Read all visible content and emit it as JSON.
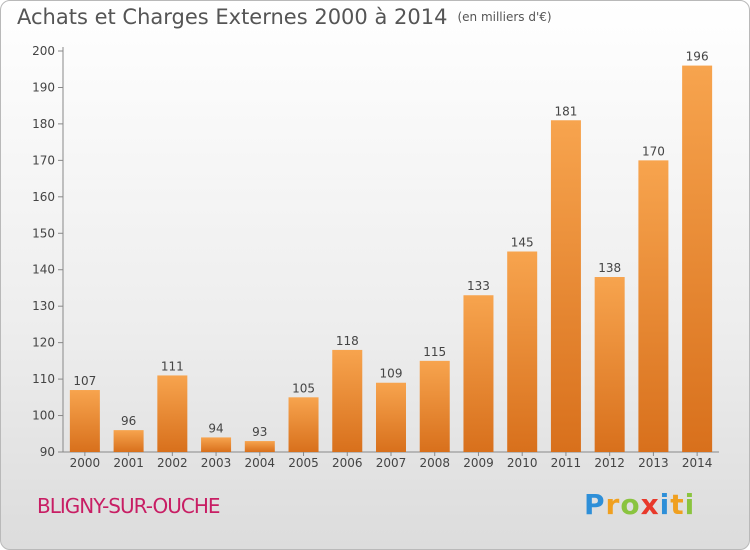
{
  "title": "Achats et Charges Externes 2000 à 2014",
  "unit_label": "(en milliers d'€)",
  "place": "BLIGNY-SUR-OUCHE",
  "logo": {
    "letters": [
      "P",
      "r",
      "o",
      "x",
      "i",
      "t",
      "i"
    ],
    "colors": [
      "#2e8fd8",
      "#f0a020",
      "#8ac43f",
      "#e8392b",
      "#2e8fd8",
      "#f0a020",
      "#8ac43f"
    ]
  },
  "colors": {
    "bar_light": "#f7a44e",
    "bar_dark": "#d8701c",
    "title": "#555555",
    "place": "#c81e64"
  },
  "chart_data": {
    "type": "bar",
    "categories": [
      "2000",
      "2001",
      "2002",
      "2003",
      "2004",
      "2005",
      "2006",
      "2007",
      "2008",
      "2009",
      "2010",
      "2011",
      "2012",
      "2013",
      "2014"
    ],
    "values": [
      107,
      96,
      111,
      94,
      93,
      105,
      118,
      109,
      115,
      133,
      145,
      181,
      138,
      170,
      196
    ],
    "ylim": [
      90,
      200
    ],
    "yticks": [
      90,
      100,
      110,
      120,
      130,
      140,
      150,
      160,
      170,
      180,
      190,
      200
    ],
    "grid": false
  }
}
